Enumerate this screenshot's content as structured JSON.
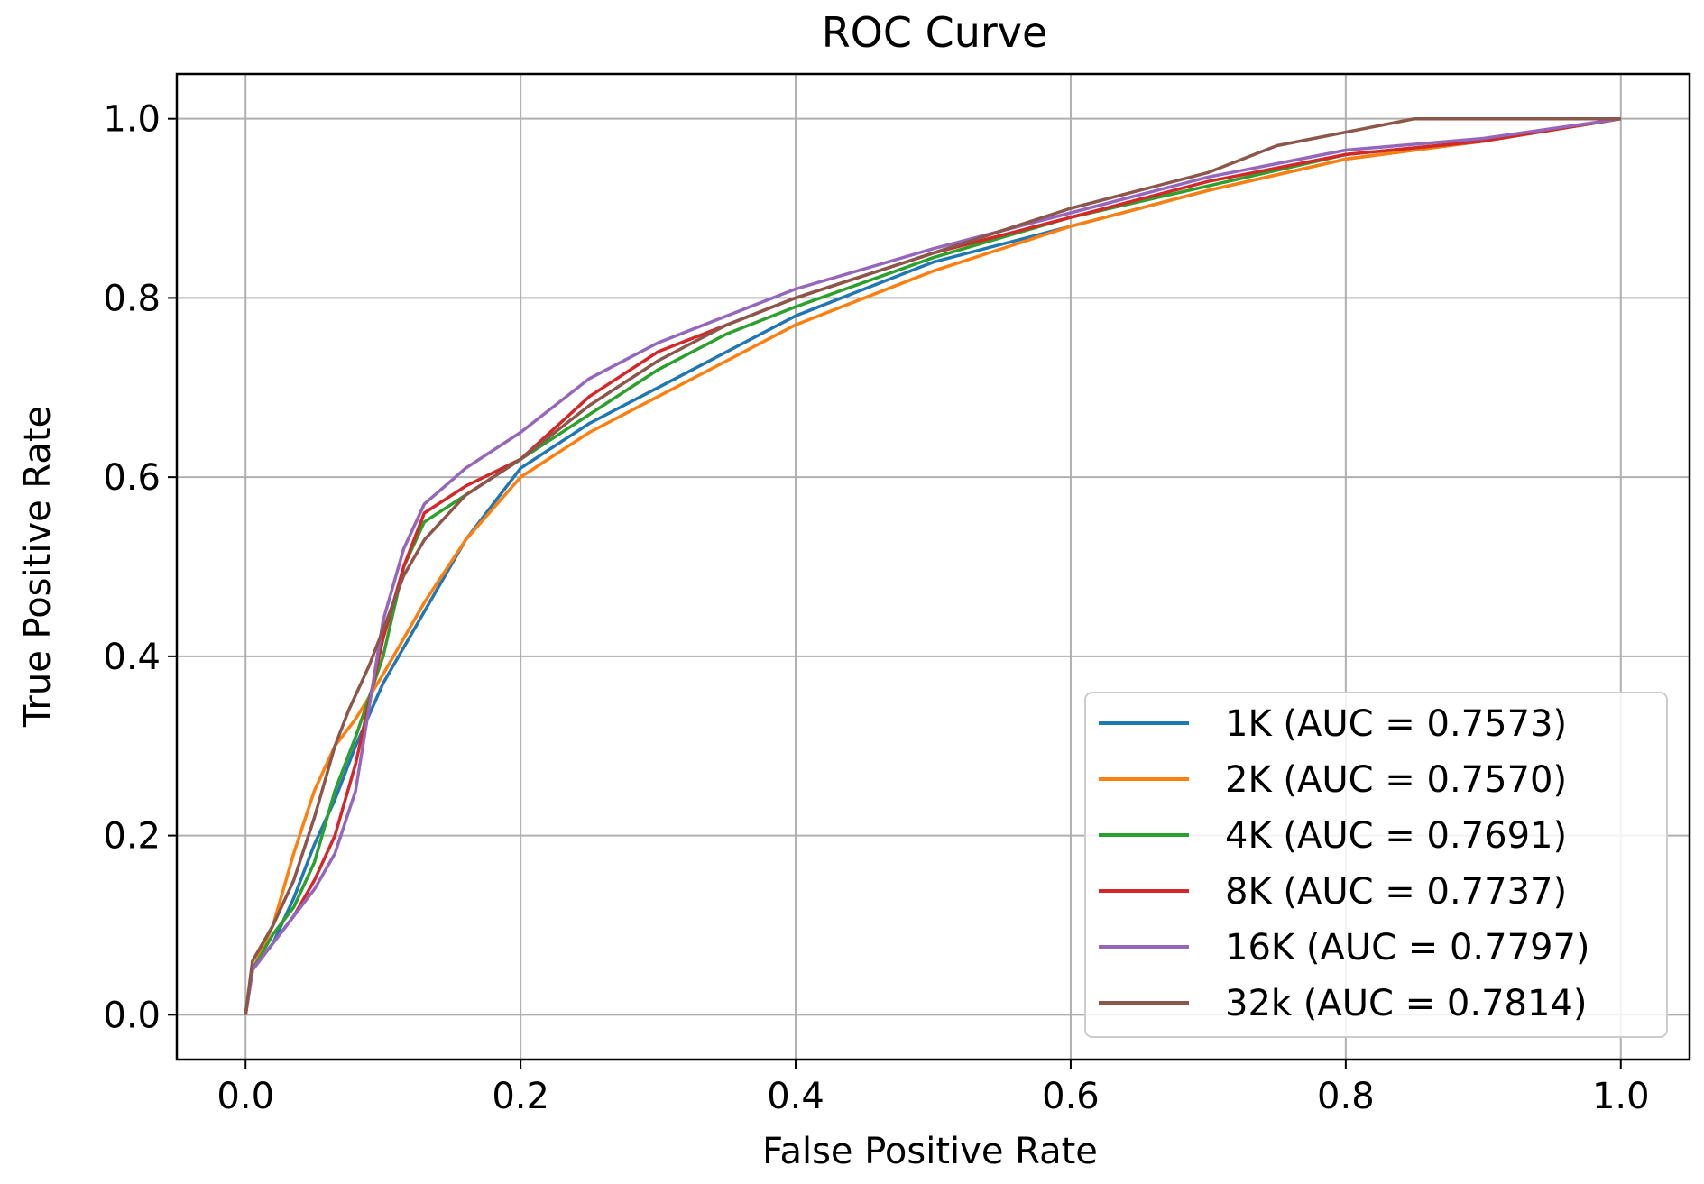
{
  "chart_data": {
    "type": "line",
    "title": "ROC Curve",
    "xlabel": "False Positive Rate",
    "ylabel": "True Positive Rate",
    "xlim": [
      -0.05,
      1.05
    ],
    "ylim": [
      -0.05,
      1.05
    ],
    "grid": true,
    "legend_position": "bottom-right",
    "xticks": [
      0.0,
      0.2,
      0.4,
      0.6,
      0.8,
      1.0
    ],
    "yticks": [
      0.0,
      0.2,
      0.4,
      0.6,
      0.8,
      1.0
    ],
    "xtick_labels": [
      "0.0",
      "0.2",
      "0.4",
      "0.6",
      "0.8",
      "1.0"
    ],
    "ytick_labels": [
      "0.0",
      "0.2",
      "0.4",
      "0.6",
      "0.8",
      "1.0"
    ],
    "series": [
      {
        "name": "1K (AUC = 0.7573)",
        "color": "#1f77b4",
        "x": [
          0.0,
          0.005,
          0.02,
          0.035,
          0.05,
          0.065,
          0.08,
          0.1,
          0.13,
          0.16,
          0.2,
          0.25,
          0.3,
          0.35,
          0.4,
          0.5,
          0.6,
          0.7,
          0.8,
          0.9,
          1.0
        ],
        "y": [
          0.0,
          0.05,
          0.08,
          0.13,
          0.19,
          0.24,
          0.3,
          0.37,
          0.45,
          0.53,
          0.61,
          0.66,
          0.7,
          0.74,
          0.78,
          0.84,
          0.88,
          0.92,
          0.955,
          0.975,
          1.0
        ]
      },
      {
        "name": "2K (AUC = 0.7570)",
        "color": "#ff7f0e",
        "x": [
          0.0,
          0.005,
          0.02,
          0.035,
          0.05,
          0.065,
          0.08,
          0.1,
          0.13,
          0.16,
          0.2,
          0.25,
          0.3,
          0.35,
          0.4,
          0.5,
          0.6,
          0.7,
          0.8,
          0.9,
          1.0
        ],
        "y": [
          0.0,
          0.05,
          0.1,
          0.18,
          0.25,
          0.3,
          0.33,
          0.38,
          0.46,
          0.53,
          0.6,
          0.65,
          0.69,
          0.73,
          0.77,
          0.83,
          0.88,
          0.92,
          0.955,
          0.975,
          1.0
        ]
      },
      {
        "name": "4K (AUC = 0.7691)",
        "color": "#2ca02c",
        "x": [
          0.0,
          0.005,
          0.02,
          0.035,
          0.05,
          0.065,
          0.08,
          0.1,
          0.115,
          0.13,
          0.16,
          0.2,
          0.25,
          0.3,
          0.35,
          0.4,
          0.5,
          0.6,
          0.7,
          0.8,
          0.9,
          1.0
        ],
        "y": [
          0.0,
          0.05,
          0.09,
          0.12,
          0.17,
          0.25,
          0.31,
          0.4,
          0.5,
          0.55,
          0.58,
          0.62,
          0.67,
          0.72,
          0.76,
          0.79,
          0.845,
          0.89,
          0.925,
          0.96,
          0.975,
          1.0
        ]
      },
      {
        "name": "8K (AUC = 0.7737)",
        "color": "#d62728",
        "x": [
          0.0,
          0.005,
          0.02,
          0.035,
          0.05,
          0.065,
          0.08,
          0.1,
          0.115,
          0.13,
          0.16,
          0.2,
          0.25,
          0.3,
          0.35,
          0.4,
          0.5,
          0.6,
          0.7,
          0.8,
          0.9,
          1.0
        ],
        "y": [
          0.0,
          0.05,
          0.08,
          0.11,
          0.15,
          0.2,
          0.28,
          0.42,
          0.5,
          0.56,
          0.59,
          0.62,
          0.69,
          0.74,
          0.77,
          0.8,
          0.85,
          0.89,
          0.93,
          0.96,
          0.975,
          1.0
        ]
      },
      {
        "name": "16K (AUC = 0.7797)",
        "color": "#9467bd",
        "x": [
          0.0,
          0.005,
          0.02,
          0.035,
          0.05,
          0.065,
          0.08,
          0.1,
          0.115,
          0.13,
          0.16,
          0.2,
          0.25,
          0.3,
          0.35,
          0.4,
          0.5,
          0.6,
          0.7,
          0.8,
          0.9,
          1.0
        ],
        "y": [
          0.0,
          0.05,
          0.08,
          0.11,
          0.14,
          0.18,
          0.25,
          0.44,
          0.52,
          0.57,
          0.61,
          0.65,
          0.71,
          0.75,
          0.78,
          0.81,
          0.855,
          0.895,
          0.935,
          0.965,
          0.978,
          1.0
        ]
      },
      {
        "name": "32k (AUC = 0.7814)",
        "color": "#8c564b",
        "x": [
          0.0,
          0.005,
          0.02,
          0.035,
          0.05,
          0.065,
          0.075,
          0.09,
          0.1,
          0.115,
          0.13,
          0.16,
          0.2,
          0.25,
          0.3,
          0.35,
          0.4,
          0.5,
          0.6,
          0.7,
          0.75,
          0.85,
          0.9,
          1.0
        ],
        "y": [
          0.0,
          0.06,
          0.1,
          0.15,
          0.22,
          0.3,
          0.34,
          0.39,
          0.43,
          0.49,
          0.53,
          0.58,
          0.62,
          0.68,
          0.73,
          0.77,
          0.8,
          0.85,
          0.9,
          0.94,
          0.97,
          1.0,
          1.0,
          1.0
        ]
      }
    ]
  }
}
